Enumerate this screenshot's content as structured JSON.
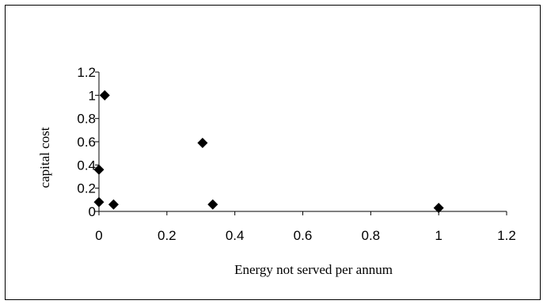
{
  "chart_data": {
    "type": "scatter",
    "title": "",
    "xlabel": "Energy not served per annum",
    "ylabel": "capital cost",
    "xlim": [
      0,
      1.2
    ],
    "ylim": [
      0,
      1.2
    ],
    "x_ticks": [
      "0",
      "0.2",
      "0.4",
      "0.6",
      "0.8",
      "1",
      "1.2"
    ],
    "y_ticks": [
      "0",
      "0.2",
      "0.4",
      "0.6",
      "0.8",
      "1",
      "1.2"
    ],
    "grid": false,
    "legend": "none",
    "marker": "diamond",
    "marker_color": "#000000",
    "series": [
      {
        "points": [
          {
            "x": 0.017,
            "y": 1.0
          },
          {
            "x": 0.305,
            "y": 0.59
          },
          {
            "x": 0.0,
            "y": 0.36
          },
          {
            "x": 0.0,
            "y": 0.08
          },
          {
            "x": 0.043,
            "y": 0.06
          },
          {
            "x": 0.335,
            "y": 0.06
          },
          {
            "x": 1.0,
            "y": 0.03
          }
        ]
      }
    ]
  }
}
